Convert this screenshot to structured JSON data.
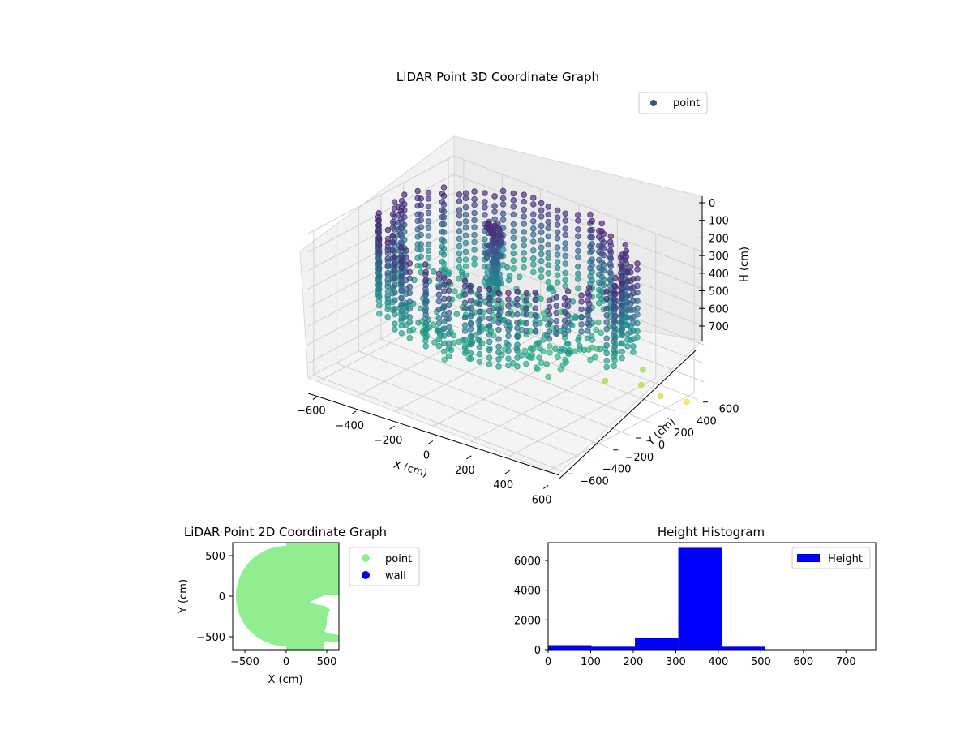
{
  "chart_data": [
    {
      "type": "scatter3d",
      "title": "LiDAR Point 3D Coordinate Graph",
      "xlabel": "X (cm)",
      "ylabel": "Y (cm)",
      "zlabel": "H (cm)",
      "xticks": [
        "−600",
        "−400",
        "−200",
        "0",
        "200",
        "400",
        "600"
      ],
      "yticks": [
        "−600",
        "−400",
        "−200",
        "0",
        "200",
        "400",
        "600"
      ],
      "zticks": [
        "0",
        "100",
        "200",
        "300",
        "400",
        "500",
        "600",
        "700"
      ],
      "xlim": [
        -650,
        650
      ],
      "ylim": [
        -650,
        650
      ],
      "zlim": [
        780,
        0
      ],
      "legend": {
        "entries": [
          "point"
        ],
        "placement": "top-right"
      },
      "colormap": "viridis",
      "grid": true,
      "point_color": "#3b528b",
      "description_of_data": {
        "ring_radius_range_cm": [
          500,
          600
        ],
        "ring_height_range_cm": [
          0,
          400
        ],
        "inner_floor_height_cm": [
          350,
          500
        ],
        "center_pillar": {
          "x": -150,
          "y": 150,
          "h_range": [
            0,
            400
          ]
        },
        "outliers": [
          {
            "x": 450,
            "y": 450,
            "h": 650
          },
          {
            "x": 600,
            "y": 350,
            "h": 700
          },
          {
            "x": 500,
            "y": 350,
            "h": 680
          },
          {
            "x": 400,
            "y": 200,
            "h": 650
          },
          {
            "x": 650,
            "y": 500,
            "h": 760
          }
        ]
      }
    },
    {
      "type": "scatter",
      "title": "LiDAR Point 2D Coordinate Graph",
      "xlabel": "X (cm)",
      "ylabel": "Y (cm)",
      "xticks": [
        "−500",
        "0",
        "500"
      ],
      "yticks": [
        "500",
        "0",
        "−500"
      ],
      "xlim": [
        -650,
        650
      ],
      "ylim": [
        -650,
        650
      ],
      "series": [
        {
          "name": "point",
          "color": "#90ee90"
        },
        {
          "name": "wall",
          "color": "#0000ff"
        }
      ],
      "legend": {
        "entries": [
          "point",
          "wall"
        ],
        "placement": "outside-right"
      }
    },
    {
      "type": "bar",
      "title": "Height Histogram",
      "xticks": [
        "0",
        "100",
        "200",
        "300",
        "400",
        "500",
        "600",
        "700"
      ],
      "yticks": [
        "0",
        "2000",
        "4000",
        "6000"
      ],
      "xlim": [
        0,
        770
      ],
      "ylim": [
        0,
        7200
      ],
      "bins": [
        {
          "start": 0,
          "end": 102,
          "value": 300
        },
        {
          "start": 102,
          "end": 204,
          "value": 200
        },
        {
          "start": 204,
          "end": 306,
          "value": 800
        },
        {
          "start": 306,
          "end": 408,
          "value": 6850
        },
        {
          "start": 408,
          "end": 510,
          "value": 200
        },
        {
          "start": 510,
          "end": 612,
          "value": 20
        },
        {
          "start": 612,
          "end": 714,
          "value": 10
        },
        {
          "start": 714,
          "end": 770,
          "value": 5
        }
      ],
      "color": "#0000ff",
      "legend": {
        "entries": [
          "Height"
        ],
        "placement": "top-right"
      }
    }
  ]
}
